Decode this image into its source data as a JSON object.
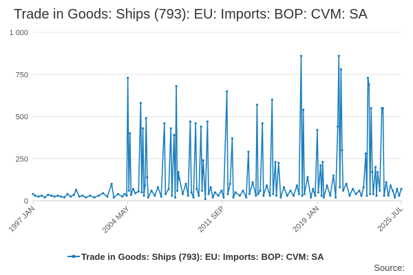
{
  "chart_data": {
    "type": "line",
    "title": "Trade in Goods: Ships (793): EU: Imports: BOP: CVM: SA",
    "xlabel": "",
    "ylabel": "",
    "ylim": [
      0,
      1000
    ],
    "yticks": [
      0,
      250,
      500,
      750,
      1000
    ],
    "ytick_labels": [
      "0",
      "250",
      "500",
      "750",
      "1 000"
    ],
    "xticks": [
      "1997 JAN",
      "2004 MAY",
      "2011 SEP",
      "2019 JAN",
      "2025 JUL"
    ],
    "x_range": [
      "1997-01",
      "2025-07"
    ],
    "grid": "horizontal",
    "legend_position": "bottom",
    "series": [
      {
        "name": "Trade in Goods: Ships (793): EU: Imports: BOP: CVM: SA",
        "color": "#1a7ebe",
        "points": [
          [
            "1997-01",
            40
          ],
          [
            "1997-03",
            30
          ],
          [
            "1997-06",
            25
          ],
          [
            "1997-09",
            30
          ],
          [
            "1997-12",
            20
          ],
          [
            "1998-03",
            35
          ],
          [
            "1998-06",
            30
          ],
          [
            "1998-09",
            25
          ],
          [
            "1998-12",
            30
          ],
          [
            "1999-03",
            25
          ],
          [
            "1999-06",
            20
          ],
          [
            "1999-09",
            40
          ],
          [
            "1999-12",
            25
          ],
          [
            "2000-03",
            35
          ],
          [
            "2000-05",
            65
          ],
          [
            "2000-08",
            25
          ],
          [
            "2000-11",
            30
          ],
          [
            "2001-02",
            20
          ],
          [
            "2001-06",
            30
          ],
          [
            "2001-10",
            20
          ],
          [
            "2002-02",
            30
          ],
          [
            "2002-06",
            45
          ],
          [
            "2002-10",
            25
          ],
          [
            "2003-02",
            100
          ],
          [
            "2003-04",
            20
          ],
          [
            "2003-08",
            40
          ],
          [
            "2003-12",
            25
          ],
          [
            "2004-02",
            40
          ],
          [
            "2004-04",
            30
          ],
          [
            "2004-05",
            730
          ],
          [
            "2004-06",
            60
          ],
          [
            "2004-07",
            400
          ],
          [
            "2004-08",
            35
          ],
          [
            "2004-10",
            70
          ],
          [
            "2004-12",
            45
          ],
          [
            "2005-03",
            55
          ],
          [
            "2005-05",
            580
          ],
          [
            "2005-06",
            50
          ],
          [
            "2005-07",
            430
          ],
          [
            "2005-08",
            30
          ],
          [
            "2005-09",
            90
          ],
          [
            "2005-10",
            490
          ],
          [
            "2005-11",
            140
          ],
          [
            "2005-12",
            20
          ],
          [
            "2006-03",
            60
          ],
          [
            "2006-06",
            30
          ],
          [
            "2006-09",
            80
          ],
          [
            "2006-12",
            25
          ],
          [
            "2007-03",
            460
          ],
          [
            "2007-04",
            40
          ],
          [
            "2007-07",
            70
          ],
          [
            "2007-09",
            430
          ],
          [
            "2007-10",
            30
          ],
          [
            "2007-12",
            390
          ],
          [
            "2008-01",
            20
          ],
          [
            "2008-02",
            680
          ],
          [
            "2008-03",
            60
          ],
          [
            "2008-04",
            170
          ],
          [
            "2008-05",
            130
          ],
          [
            "2008-08",
            40
          ],
          [
            "2008-11",
            100
          ],
          [
            "2009-01",
            30
          ],
          [
            "2009-03",
            470
          ],
          [
            "2009-04",
            50
          ],
          [
            "2009-06",
            20
          ],
          [
            "2009-08",
            460
          ],
          [
            "2009-09",
            70
          ],
          [
            "2009-11",
            30
          ],
          [
            "2010-01",
            440
          ],
          [
            "2010-02",
            60
          ],
          [
            "2010-03",
            240
          ],
          [
            "2010-05",
            10
          ],
          [
            "2010-07",
            470
          ],
          [
            "2010-08",
            40
          ],
          [
            "2010-10",
            80
          ],
          [
            "2010-12",
            20
          ],
          [
            "2011-02",
            50
          ],
          [
            "2011-05",
            30
          ],
          [
            "2011-08",
            60
          ],
          [
            "2011-10",
            20
          ],
          [
            "2012-01",
            650
          ],
          [
            "2012-02",
            40
          ],
          [
            "2012-04",
            100
          ],
          [
            "2012-06",
            370
          ],
          [
            "2012-07",
            20
          ],
          [
            "2012-09",
            50
          ],
          [
            "2013-01",
            30
          ],
          [
            "2013-04",
            60
          ],
          [
            "2013-07",
            20
          ],
          [
            "2013-09",
            290
          ],
          [
            "2013-10",
            40
          ],
          [
            "2014-01",
            110
          ],
          [
            "2014-04",
            30
          ],
          [
            "2014-05",
            570
          ],
          [
            "2014-06",
            40
          ],
          [
            "2014-08",
            60
          ],
          [
            "2014-10",
            460
          ],
          [
            "2014-11",
            30
          ],
          [
            "2015-02",
            90
          ],
          [
            "2015-05",
            30
          ],
          [
            "2015-07",
            600
          ],
          [
            "2015-08",
            40
          ],
          [
            "2015-10",
            230
          ],
          [
            "2015-11",
            30
          ],
          [
            "2016-01",
            225
          ],
          [
            "2016-03",
            20
          ],
          [
            "2016-06",
            80
          ],
          [
            "2016-09",
            30
          ],
          [
            "2016-12",
            60
          ],
          [
            "2017-03",
            30
          ],
          [
            "2017-06",
            90
          ],
          [
            "2017-08",
            40
          ],
          [
            "2017-10",
            860
          ],
          [
            "2017-11",
            30
          ],
          [
            "2017-12",
            540
          ],
          [
            "2018-01",
            40
          ],
          [
            "2018-04",
            140
          ],
          [
            "2018-07",
            20
          ],
          [
            "2018-09",
            70
          ],
          [
            "2018-11",
            30
          ],
          [
            "2019-01",
            420
          ],
          [
            "2019-02",
            50
          ],
          [
            "2019-04",
            210
          ],
          [
            "2019-05",
            30
          ],
          [
            "2019-06",
            230
          ],
          [
            "2019-07",
            20
          ],
          [
            "2019-10",
            90
          ],
          [
            "2020-01",
            30
          ],
          [
            "2020-04",
            150
          ],
          [
            "2020-06",
            20
          ],
          [
            "2020-08",
            440
          ],
          [
            "2020-09",
            860
          ],
          [
            "2020-10",
            80
          ],
          [
            "2020-11",
            780
          ],
          [
            "2020-12",
            300
          ],
          [
            "2021-01",
            60
          ],
          [
            "2021-04",
            100
          ],
          [
            "2021-07",
            30
          ],
          [
            "2021-10",
            70
          ],
          [
            "2022-01",
            40
          ],
          [
            "2022-04",
            60
          ],
          [
            "2022-06",
            30
          ],
          [
            "2022-08",
            80
          ],
          [
            "2022-10",
            280
          ],
          [
            "2022-11",
            30
          ],
          [
            "2022-12",
            730
          ],
          [
            "2023-01",
            690
          ],
          [
            "2023-02",
            40
          ],
          [
            "2023-03",
            550
          ],
          [
            "2023-04",
            170
          ],
          [
            "2023-05",
            40
          ],
          [
            "2023-07",
            200
          ],
          [
            "2023-08",
            30
          ],
          [
            "2023-09",
            170
          ],
          [
            "2023-11",
            60
          ],
          [
            "2024-01",
            550
          ],
          [
            "2024-02",
            550
          ],
          [
            "2024-03",
            30
          ],
          [
            "2024-05",
            110
          ],
          [
            "2024-07",
            30
          ],
          [
            "2024-09",
            90
          ],
          [
            "2024-11",
            60
          ],
          [
            "2025-01",
            20
          ],
          [
            "2025-03",
            70
          ],
          [
            "2025-05",
            30
          ],
          [
            "2025-07",
            70
          ]
        ]
      }
    ]
  },
  "legend_label": "Trade in Goods: Ships (793): EU: Imports: BOP: CVM: SA",
  "source_label": "Source:"
}
